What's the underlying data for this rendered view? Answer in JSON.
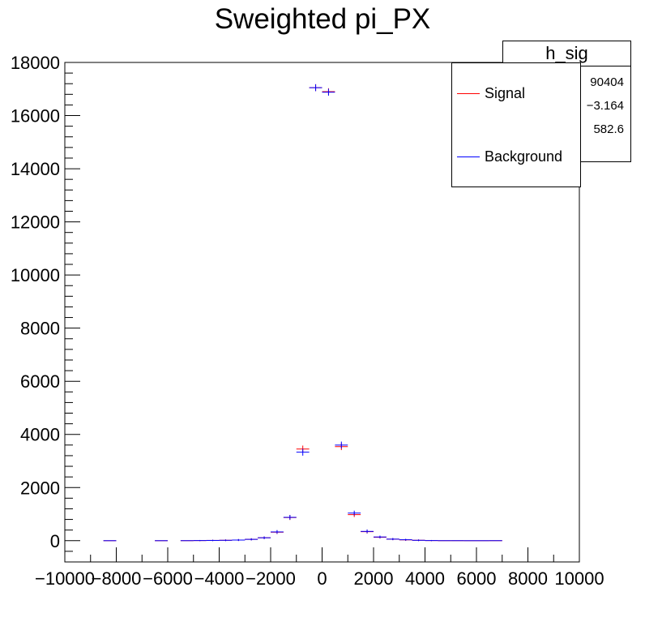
{
  "title": "Sweighted pi_PX",
  "stats_box": {
    "name": "h_sig",
    "values": [
      "90404",
      "−3.164",
      "582.6"
    ]
  },
  "legend": [
    {
      "label": "Signal",
      "color": "#ff0000"
    },
    {
      "label": "Background",
      "color": "#0000ff"
    }
  ],
  "chart_data": {
    "type": "scatter",
    "title": "Sweighted pi_PX",
    "xlim": [
      -10000,
      10000
    ],
    "ylim": [
      -800,
      18000
    ],
    "x_ticks": [
      -10000,
      -8000,
      -6000,
      -4000,
      -2000,
      0,
      2000,
      4000,
      6000,
      8000,
      10000
    ],
    "x_tick_labels": [
      "−10000",
      "−8000",
      "−6000",
      "−4000",
      "−2000",
      "0",
      "2000",
      "4000",
      "6000",
      "8000",
      "10000"
    ],
    "y_ticks": [
      0,
      2000,
      4000,
      6000,
      8000,
      10000,
      12000,
      14000,
      16000,
      18000
    ],
    "y_tick_labels": [
      "0",
      "2000",
      "4000",
      "6000",
      "8000",
      "10000",
      "12000",
      "14000",
      "16000",
      "18000"
    ],
    "bin_width": 500,
    "grid": false,
    "legend_position": "top-right",
    "series": [
      {
        "name": "Signal",
        "color": "#ff0000",
        "x": [
          -8250,
          -6250,
          -5250,
          -4750,
          -4250,
          -3750,
          -3250,
          -2750,
          -2250,
          -1750,
          -1250,
          -750,
          -250,
          250,
          750,
          1250,
          1750,
          2250,
          2750,
          3250,
          3750,
          4250,
          4750,
          5250,
          5750,
          6250,
          6750
        ],
        "y": [
          0,
          0,
          0,
          5,
          10,
          15,
          25,
          50,
          110,
          320,
          870,
          3450,
          17050,
          16900,
          3540,
          980,
          340,
          130,
          60,
          30,
          15,
          5,
          0,
          0,
          0,
          0,
          0
        ],
        "yerr": [
          0,
          0,
          0,
          20,
          25,
          30,
          35,
          40,
          50,
          70,
          90,
          130,
          130,
          130,
          130,
          90,
          70,
          50,
          40,
          35,
          30,
          20,
          0,
          0,
          0,
          0,
          0
        ]
      },
      {
        "name": "Background",
        "color": "#0000ff",
        "x": [
          -8250,
          -6250,
          -5250,
          -4750,
          -4250,
          -3750,
          -3250,
          -2750,
          -2250,
          -1750,
          -1250,
          -750,
          -250,
          250,
          750,
          1250,
          1750,
          2250,
          2750,
          3250,
          3750,
          4250,
          4750,
          5250,
          5750,
          6250,
          6750
        ],
        "y": [
          0,
          0,
          0,
          5,
          10,
          15,
          25,
          50,
          110,
          330,
          880,
          3330,
          17050,
          16880,
          3600,
          1040,
          350,
          140,
          60,
          35,
          15,
          5,
          0,
          0,
          0,
          0,
          0
        ],
        "yerr": [
          0,
          0,
          0,
          20,
          25,
          30,
          35,
          40,
          50,
          70,
          90,
          130,
          130,
          130,
          130,
          90,
          70,
          50,
          40,
          35,
          30,
          20,
          0,
          0,
          0,
          0,
          0
        ]
      }
    ]
  }
}
